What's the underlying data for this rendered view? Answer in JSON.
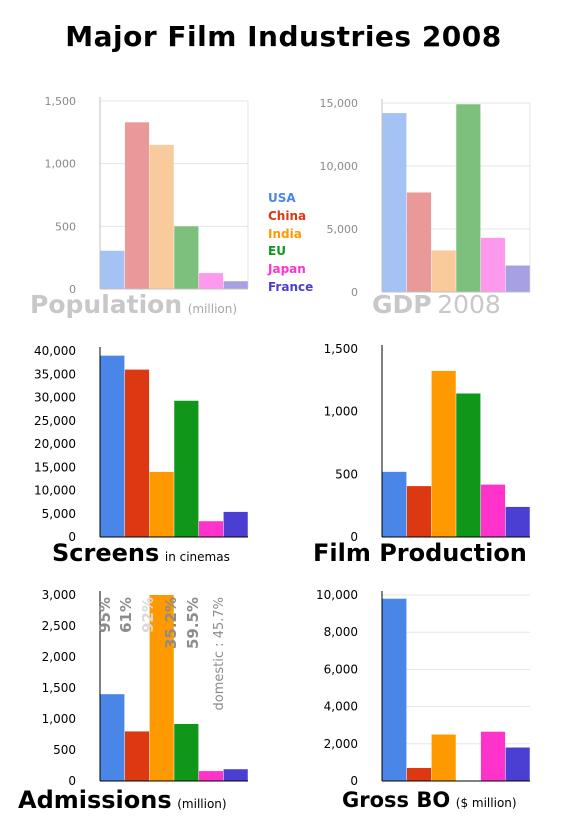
{
  "title": "Major Film Industries 2008",
  "legend": [
    {
      "name": "USA",
      "color": "#4a86e8"
    },
    {
      "name": "China",
      "color": "#dc3912"
    },
    {
      "name": "India",
      "color": "#ff9900"
    },
    {
      "name": "EU",
      "color": "#109618"
    },
    {
      "name": "Japan",
      "color": "#ff33cc"
    },
    {
      "name": "France",
      "color": "#4b3fd3"
    }
  ],
  "captions": {
    "population": {
      "main": "Population",
      "sub": "(million)"
    },
    "gdp": {
      "main": "GDP",
      "sub": "2008"
    },
    "screens": {
      "main": "Screens",
      "sub": "in cinemas"
    },
    "production": {
      "main": "Film Production",
      "sub": ""
    },
    "admissions": {
      "main": "Admissions",
      "sub": "(million)"
    },
    "gross": {
      "main": "Gross BO",
      "sub": "($ million)"
    }
  },
  "chart_data": [
    {
      "id": "population",
      "type": "bar",
      "categories": [
        "USA",
        "China",
        "India",
        "EU",
        "Japan",
        "France"
      ],
      "values": [
        305,
        1330,
        1150,
        500,
        127,
        62
      ],
      "ylim": [
        0,
        1500
      ],
      "yticks": [
        "0",
        "500",
        "1,000",
        "1,500"
      ],
      "ytick_values": [
        0,
        500,
        1000,
        1500
      ],
      "faded": true,
      "grid": true,
      "title": "Population",
      "ylabel": "(million)"
    },
    {
      "id": "gdp",
      "type": "bar",
      "categories": [
        "USA",
        "China",
        "India",
        "EU",
        "Japan",
        "France"
      ],
      "values": [
        14200,
        7900,
        3300,
        14900,
        4300,
        2100
      ],
      "ylim": [
        0,
        15000
      ],
      "yticks": [
        "0",
        "5,000",
        "10,000",
        "15,000"
      ],
      "ytick_values": [
        0,
        5000,
        10000,
        15000
      ],
      "faded": true,
      "grid": true,
      "title": "GDP 2008"
    },
    {
      "id": "screens",
      "type": "bar",
      "categories": [
        "USA",
        "China",
        "India",
        "EU",
        "Japan",
        "France"
      ],
      "values": [
        39000,
        36000,
        14000,
        29300,
        3400,
        5400
      ],
      "ylim": [
        0,
        40000
      ],
      "yticks": [
        "0",
        "5,000",
        "10,000",
        "15,000",
        "20,000",
        "25,000",
        "30,000",
        "35,000",
        "40,000"
      ],
      "ytick_values": [
        0,
        5000,
        10000,
        15000,
        20000,
        25000,
        30000,
        35000,
        40000
      ],
      "faded": false,
      "grid": false,
      "title": "Screens",
      "ylabel": "in cinemas"
    },
    {
      "id": "production",
      "type": "bar",
      "categories": [
        "USA",
        "China",
        "India",
        "EU",
        "Japan",
        "France"
      ],
      "values": [
        520,
        406,
        1325,
        1145,
        418,
        240
      ],
      "ylim": [
        0,
        1500
      ],
      "yticks": [
        "0",
        "500",
        "1,000",
        "1,500"
      ],
      "ytick_values": [
        0,
        500,
        1000,
        1500
      ],
      "faded": false,
      "grid": false,
      "title": "Film Production"
    },
    {
      "id": "admissions",
      "type": "bar",
      "categories": [
        "USA",
        "China",
        "India",
        "EU",
        "Japan",
        "France"
      ],
      "values": [
        1400,
        800,
        3000,
        920,
        160,
        190
      ],
      "ylim": [
        0,
        3000
      ],
      "yticks": [
        "0",
        "500",
        "1,000",
        "1,500",
        "2,000",
        "2,500",
        "3,000"
      ],
      "ytick_values": [
        0,
        500,
        1000,
        1500,
        2000,
        2500,
        3000
      ],
      "faded": false,
      "grid": false,
      "title": "Admissions",
      "ylabel": "(million)",
      "annotations": [
        "95%",
        "61%",
        "92%",
        "35.2%",
        "59.5%",
        "domestic : 45.7%"
      ]
    },
    {
      "id": "gross",
      "type": "bar",
      "categories": [
        "USA",
        "China",
        "India",
        "EU",
        "Japan",
        "France"
      ],
      "values": [
        9800,
        700,
        2500,
        null,
        2650,
        1800
      ],
      "ylim": [
        0,
        10000
      ],
      "yticks": [
        "0",
        "2,000",
        "4,000",
        "6,000",
        "8,000",
        "10,000"
      ],
      "ytick_values": [
        0,
        2000,
        4000,
        6000,
        8000,
        10000
      ],
      "faded": false,
      "grid": true,
      "title": "Gross BO",
      "ylabel": "($ million)"
    }
  ]
}
